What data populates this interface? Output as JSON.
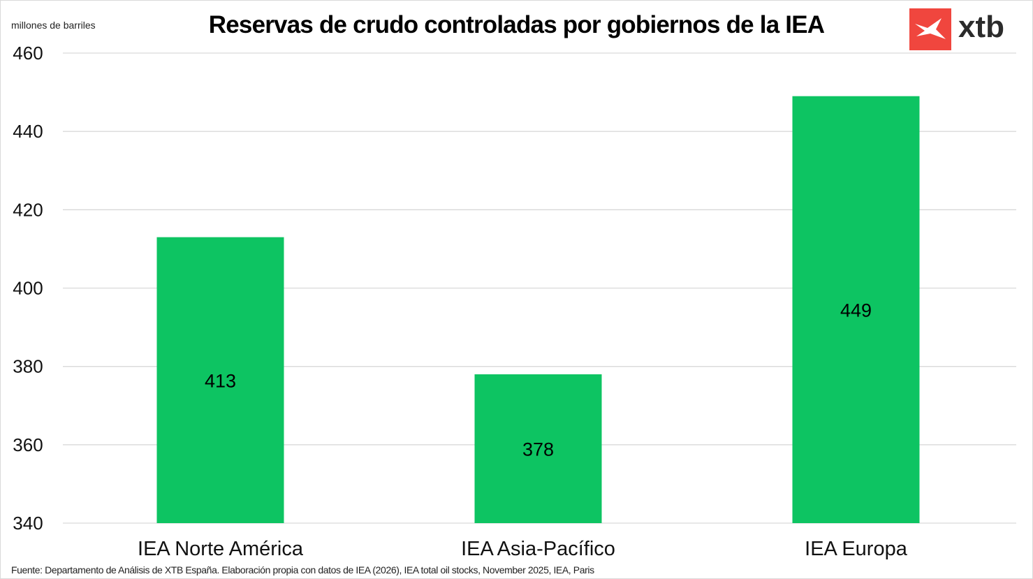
{
  "chart_data": {
    "type": "bar",
    "title": "Reservas de crudo controladas por gobiernos de la IEA",
    "ylabel": "millones de barriles",
    "xlabel": "",
    "categories": [
      "IEA Norte América",
      "IEA Asia-Pacífico",
      "IEA Europa"
    ],
    "values": [
      413,
      378,
      449
    ],
    "data_labels": [
      "413",
      "378",
      "449"
    ],
    "ylim": [
      340,
      460
    ],
    "yticks": [
      340,
      360,
      380,
      400,
      420,
      440,
      460
    ],
    "grid": true,
    "bar_color": "#0dc462"
  },
  "source": "Fuente: Departamento de Análisis de XTB España. Elaboración propia con datos de IEA (2026), IEA total oil stocks, November 2025, IEA, Paris",
  "logo": {
    "text": "xtb",
    "color": "#f0463e",
    "icon": "xtb-cross-icon"
  }
}
